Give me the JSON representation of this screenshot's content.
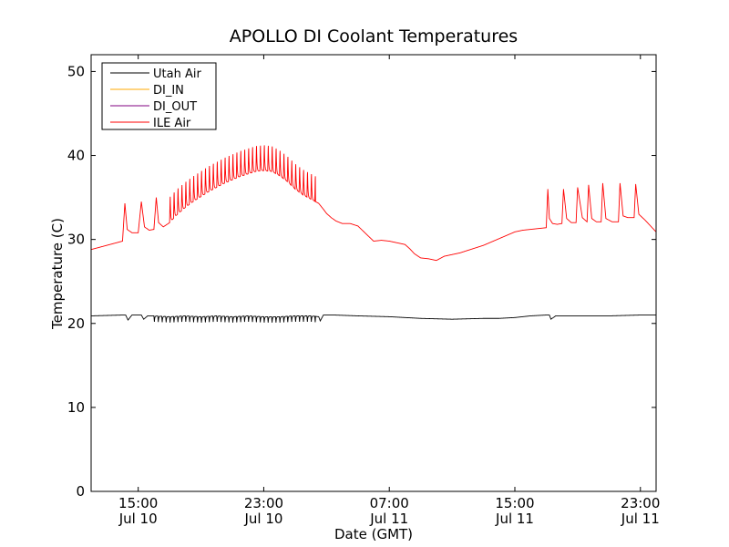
{
  "chart_data": {
    "type": "line",
    "title": "APOLLO DI Coolant Temperatures",
    "xlabel": "Date (GMT)",
    "ylabel": "Temperature (C)",
    "xlim": [
      12.0,
      48.0
    ],
    "ylim": [
      0,
      52
    ],
    "yticks": [
      0,
      10,
      20,
      30,
      40,
      50
    ],
    "xticks": [
      {
        "value": 15,
        "time": "15:00",
        "date": "Jul 10"
      },
      {
        "value": 23,
        "time": "23:00",
        "date": "Jul 10"
      },
      {
        "value": 31,
        "time": "07:00",
        "date": "Jul 11"
      },
      {
        "value": 39,
        "time": "15:00",
        "date": "Jul 11"
      },
      {
        "value": 47,
        "time": "23:00",
        "date": "Jul 11"
      }
    ],
    "x_units": "hours since Jul 10 00:00 GMT",
    "legend_position": "top-left",
    "series": [
      {
        "name": "Utah Air",
        "color": "#000000",
        "x": [
          12.0,
          14.0,
          14.2,
          14.35,
          14.6,
          15.0,
          15.2,
          15.35,
          15.6,
          16.0,
          17.0,
          18.0,
          19.0,
          20.0,
          21.0,
          22.0,
          23.0,
          24.0,
          25.0,
          26.0,
          26.5,
          26.6,
          26.8,
          27.5,
          29.0,
          31.0,
          33.0,
          35.0,
          37.0,
          38.0,
          39.0,
          40.0,
          41.0,
          41.2,
          41.3,
          41.6,
          42.0,
          43.0,
          45.0,
          47.0,
          48.0
        ],
        "y": [
          20.9,
          21.0,
          21.0,
          20.4,
          21.0,
          21.0,
          21.0,
          20.5,
          20.9,
          20.9,
          20.8,
          20.9,
          20.8,
          20.9,
          20.8,
          20.9,
          20.8,
          20.8,
          20.9,
          20.9,
          20.8,
          20.3,
          21.0,
          21.0,
          20.9,
          20.8,
          20.6,
          20.5,
          20.6,
          20.6,
          20.7,
          20.9,
          21.0,
          21.0,
          20.5,
          20.9,
          20.9,
          20.9,
          20.9,
          21.0,
          21.0
        ]
      },
      {
        "name": "DI_IN",
        "color": "#ffaa00",
        "x": [],
        "y": []
      },
      {
        "name": "DI_OUT",
        "color": "#800080",
        "x": [],
        "y": []
      },
      {
        "name": "ILE Air",
        "color": "#ff0000",
        "x": [
          12.0,
          14.0,
          14.15,
          14.3,
          14.6,
          15.0,
          15.2,
          15.4,
          15.7,
          16.0,
          16.15,
          16.3,
          16.6,
          17.0,
          17.5,
          18.0,
          18.5,
          19.0,
          19.5,
          20.0,
          20.5,
          21.0,
          21.5,
          22.0,
          22.5,
          23.0,
          23.5,
          24.0,
          24.5,
          25.0,
          25.5,
          26.0,
          26.5,
          26.8,
          27.0,
          27.3,
          27.6,
          28.0,
          28.5,
          29.0,
          29.5,
          30.0,
          30.5,
          31.0,
          31.5,
          32.0,
          32.3,
          32.6,
          33.0,
          33.5,
          34.0,
          34.5,
          35.0,
          35.5,
          36.0,
          36.5,
          37.0,
          37.5,
          38.0,
          38.5,
          39.0,
          39.5,
          40.0,
          40.5,
          41.0,
          41.1,
          41.2,
          41.4,
          41.7,
          42.0,
          42.1,
          42.3,
          42.6,
          42.9,
          43.0,
          43.3,
          43.6,
          43.7,
          43.9,
          44.2,
          44.5,
          44.6,
          44.8,
          45.2,
          45.6,
          45.7,
          45.9,
          46.2,
          46.6,
          46.7,
          46.9,
          47.3,
          48.0
        ],
        "y": [
          28.8,
          29.8,
          34.3,
          31.2,
          30.8,
          30.8,
          34.5,
          31.5,
          31.1,
          31.2,
          35.0,
          32.0,
          31.5,
          32.0,
          33.0,
          33.8,
          34.5,
          35.1,
          35.7,
          36.2,
          36.7,
          37.1,
          37.5,
          37.8,
          38.1,
          38.2,
          38.1,
          37.6,
          36.9,
          36.0,
          35.3,
          34.8,
          34.3,
          33.6,
          33.1,
          32.6,
          32.2,
          31.9,
          31.9,
          31.6,
          30.7,
          29.8,
          29.9,
          29.8,
          29.6,
          29.4,
          28.9,
          28.3,
          27.8,
          27.7,
          27.5,
          28.0,
          28.2,
          28.4,
          28.7,
          29.0,
          29.3,
          29.7,
          30.1,
          30.5,
          30.9,
          31.1,
          31.2,
          31.3,
          31.4,
          36.0,
          32.5,
          31.9,
          31.8,
          31.9,
          36.0,
          32.5,
          32.0,
          32.0,
          36.2,
          32.6,
          32.1,
          36.5,
          32.5,
          32.1,
          32.1,
          36.7,
          32.5,
          32.1,
          32.1,
          36.7,
          32.8,
          32.6,
          32.6,
          36.6,
          33.0,
          32.3,
          30.9
        ]
      }
    ],
    "oscillations": [
      {
        "series": "ILE Air",
        "x_start": 17.0,
        "x_end": 26.3,
        "period_hours": 0.25,
        "peak_above_base": 3.3,
        "label": "periodic spikes"
      },
      {
        "series": "Utah Air",
        "x_start": 16.0,
        "x_end": 26.3,
        "period_hours": 0.25,
        "dip_below_base": 0.7,
        "label": "periodic dips"
      }
    ]
  }
}
